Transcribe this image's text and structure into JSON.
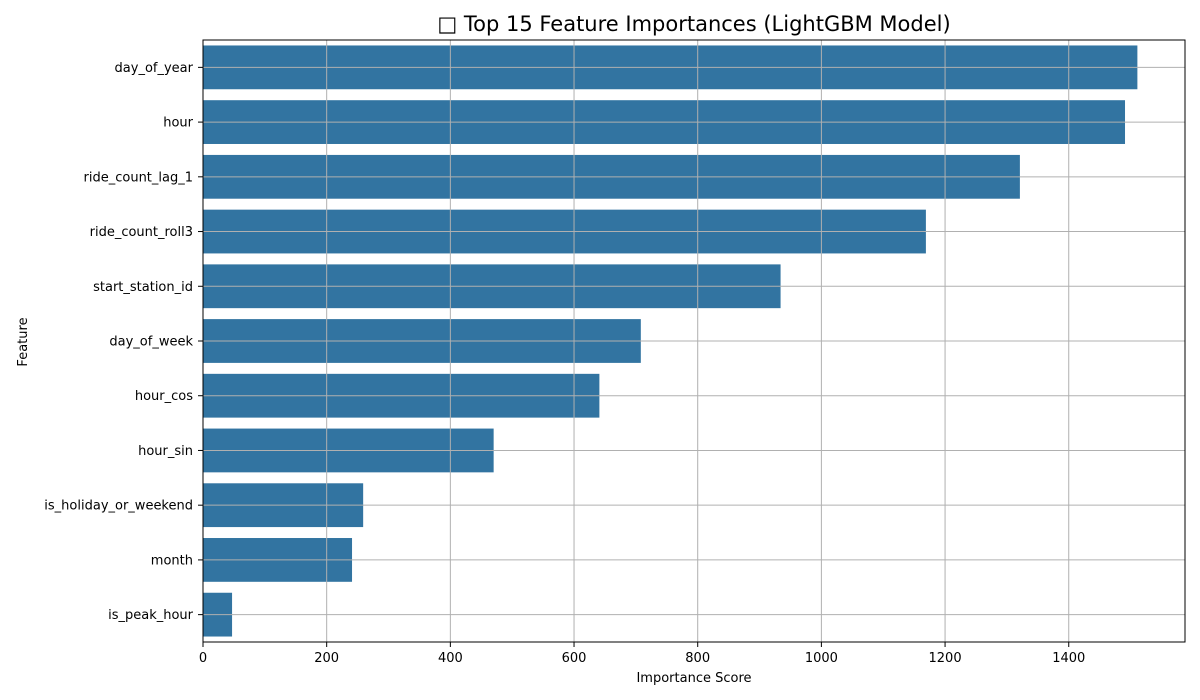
{
  "chart_data": {
    "type": "bar",
    "orientation": "horizontal",
    "title": "□ Top 15 Feature Importances (LightGBM Model)",
    "xlabel": "Importance Score",
    "ylabel": "Feature",
    "categories": [
      "day_of_year",
      "hour",
      "ride_count_lag_1",
      "ride_count_roll3",
      "start_station_id",
      "day_of_week",
      "hour_cos",
      "hour_sin",
      "is_holiday_or_weekend",
      "month",
      "is_peak_hour"
    ],
    "values": [
      1511,
      1491,
      1321,
      1169,
      934,
      708,
      641,
      470,
      259,
      241,
      47
    ],
    "xlim": [
      0,
      1588
    ],
    "xticks": [
      0,
      200,
      400,
      600,
      800,
      1000,
      1200,
      1400
    ],
    "grid": true,
    "bar_color": "#3274a1",
    "grid_color": "#b0b0b0"
  }
}
